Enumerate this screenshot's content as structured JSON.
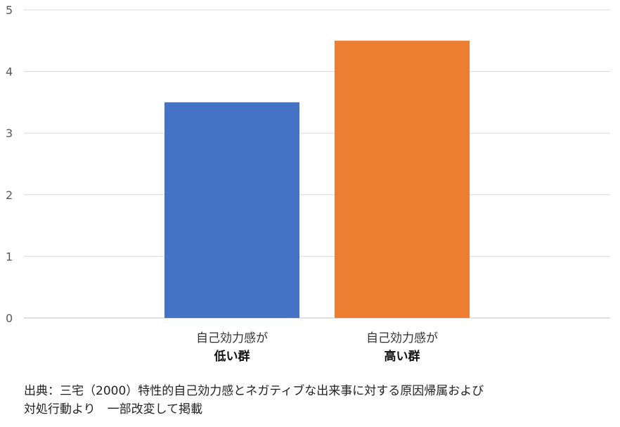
{
  "chart_data": {
    "type": "bar",
    "categories": [
      {
        "line1": "自己効力感が",
        "line2": "低い群"
      },
      {
        "line1": "自己効力感が",
        "line2": "高い群"
      }
    ],
    "values": [
      3.5,
      4.5
    ],
    "colors": [
      "#4472C4",
      "#ED7D31"
    ],
    "ylim": [
      0,
      5
    ],
    "yticks": [
      "0",
      "1",
      "2",
      "3",
      "4",
      "5"
    ],
    "grid": true
  },
  "source": {
    "line1": "出典：三宅（2000）特性的自己効力感とネガティブな出来事に対する原因帰属および",
    "line2": "対処行動より　一部改変して掲載"
  }
}
